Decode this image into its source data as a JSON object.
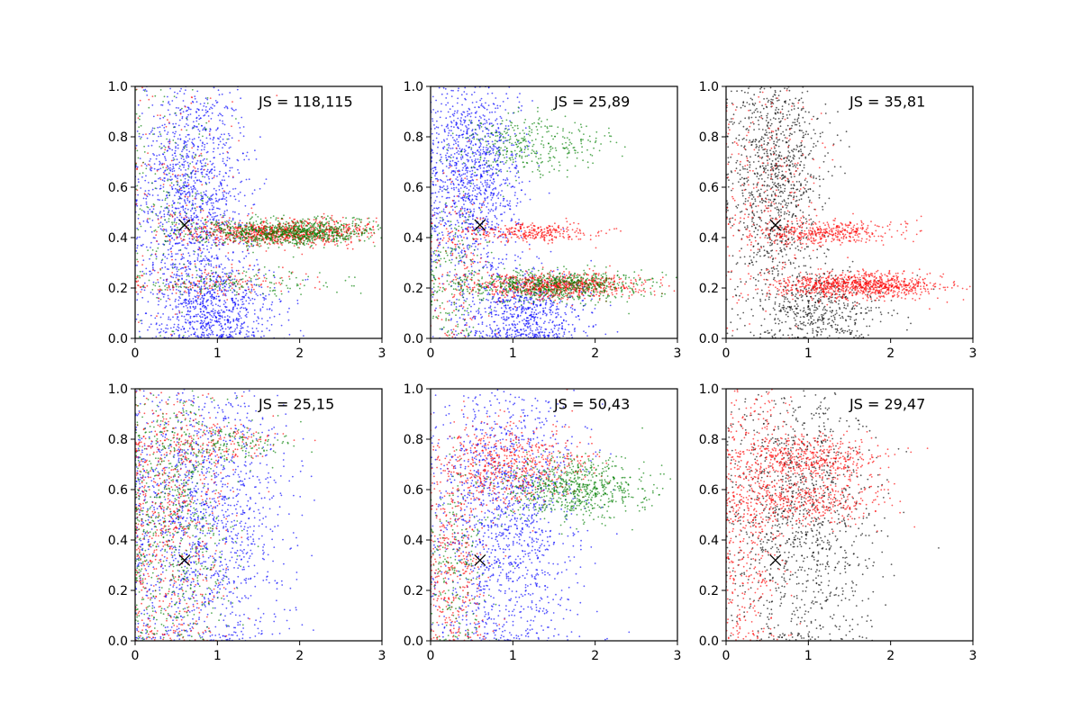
{
  "figure": {
    "background": "#ffffff"
  },
  "chart_data": [
    {
      "type": "scatter",
      "annotation": "JS = 118,115",
      "xlim": [
        0,
        3
      ],
      "ylim": [
        0,
        1
      ],
      "xticks": [
        "0",
        "1",
        "2",
        "3"
      ],
      "yticks": [
        "0.0",
        "0.2",
        "0.4",
        "0.6",
        "0.8",
        "1.0"
      ],
      "marker": {
        "x": 0.6,
        "y": 0.45,
        "symbol": "x",
        "color": "#000000"
      },
      "series": [
        {
          "color": "#0000ff",
          "clusters": [
            {
              "cx": 0.7,
              "cy": 0.55,
              "sx": 0.35,
              "sy": 0.28,
              "count": 1500
            },
            {
              "cx": 1.0,
              "cy": 0.12,
              "sx": 0.35,
              "sy": 0.08,
              "count": 600
            }
          ]
        },
        {
          "color": "#ff0000",
          "clusters": [
            {
              "cx": 1.8,
              "cy": 0.42,
              "sx": 0.55,
              "sy": 0.025,
              "count": 900
            },
            {
              "cx": 0.9,
              "cy": 0.22,
              "sx": 0.6,
              "sy": 0.03,
              "count": 150
            },
            {
              "cx": 0.5,
              "cy": 0.6,
              "sx": 0.4,
              "sy": 0.25,
              "count": 150
            }
          ]
        },
        {
          "color": "#008000",
          "clusters": [
            {
              "cx": 1.9,
              "cy": 0.42,
              "sx": 0.55,
              "sy": 0.025,
              "count": 900
            },
            {
              "cx": 1.3,
              "cy": 0.22,
              "sx": 0.6,
              "sy": 0.03,
              "count": 150
            },
            {
              "cx": 0.4,
              "cy": 0.55,
              "sx": 0.3,
              "sy": 0.25,
              "count": 200
            }
          ]
        }
      ]
    },
    {
      "type": "scatter",
      "annotation": "JS = 25,89",
      "xlim": [
        0,
        3
      ],
      "ylim": [
        0,
        1
      ],
      "xticks": [
        "0",
        "1",
        "2",
        "3"
      ],
      "yticks": [
        "0.0",
        "0.2",
        "0.4",
        "0.6",
        "0.8",
        "1.0"
      ],
      "marker": {
        "x": 0.6,
        "y": 0.45,
        "symbol": "x",
        "color": "#000000"
      },
      "series": [
        {
          "color": "#0000ff",
          "clusters": [
            {
              "cx": 0.5,
              "cy": 0.65,
              "sx": 0.3,
              "sy": 0.22,
              "count": 1300
            },
            {
              "cx": 1.1,
              "cy": 0.1,
              "sx": 0.4,
              "sy": 0.08,
              "count": 700
            }
          ]
        },
        {
          "color": "#ff0000",
          "clusters": [
            {
              "cx": 1.5,
              "cy": 0.21,
              "sx": 0.5,
              "sy": 0.025,
              "count": 800
            },
            {
              "cx": 1.2,
              "cy": 0.42,
              "sx": 0.4,
              "sy": 0.02,
              "count": 300
            },
            {
              "cx": 0.3,
              "cy": 0.3,
              "sx": 0.2,
              "sy": 0.2,
              "count": 150
            }
          ]
        },
        {
          "color": "#008000",
          "clusters": [
            {
              "cx": 1.5,
              "cy": 0.21,
              "sx": 0.55,
              "sy": 0.03,
              "count": 700
            },
            {
              "cx": 1.2,
              "cy": 0.77,
              "sx": 0.45,
              "sy": 0.06,
              "count": 350
            },
            {
              "cx": 0.3,
              "cy": 0.25,
              "sx": 0.2,
              "sy": 0.15,
              "count": 200
            }
          ]
        }
      ]
    },
    {
      "type": "scatter",
      "annotation": "JS = 35,81",
      "xlim": [
        0,
        3
      ],
      "ylim": [
        0,
        1
      ],
      "xticks": [
        "0",
        "1",
        "2",
        "3"
      ],
      "yticks": [
        "0.0",
        "0.2",
        "0.4",
        "0.6",
        "0.8",
        "1.0"
      ],
      "marker": {
        "x": 0.6,
        "y": 0.45,
        "symbol": "x",
        "color": "#000000"
      },
      "series": [
        {
          "color": "#000000",
          "clusters": [
            {
              "cx": 0.6,
              "cy": 0.65,
              "sx": 0.3,
              "sy": 0.25,
              "count": 1100
            },
            {
              "cx": 1.1,
              "cy": 0.12,
              "sx": 0.4,
              "sy": 0.08,
              "count": 500
            }
          ]
        },
        {
          "color": "#ff0000",
          "clusters": [
            {
              "cx": 1.6,
              "cy": 0.21,
              "sx": 0.5,
              "sy": 0.025,
              "count": 900
            },
            {
              "cx": 1.2,
              "cy": 0.42,
              "sx": 0.45,
              "sy": 0.025,
              "count": 400
            },
            {
              "cx": 0.5,
              "cy": 0.6,
              "sx": 0.35,
              "sy": 0.25,
              "count": 250
            }
          ]
        }
      ]
    },
    {
      "type": "scatter",
      "annotation": "JS = 25,15",
      "xlim": [
        0,
        3
      ],
      "ylim": [
        0,
        1
      ],
      "xticks": [
        "0",
        "1",
        "2",
        "3"
      ],
      "yticks": [
        "0.0",
        "0.2",
        "0.4",
        "0.6",
        "0.8",
        "1.0"
      ],
      "marker": {
        "x": 0.6,
        "y": 0.32,
        "symbol": "x",
        "color": "#000000"
      },
      "series": [
        {
          "color": "#0000ff",
          "clusters": [
            {
              "cx": 0.8,
              "cy": 0.5,
              "sx": 0.5,
              "sy": 0.3,
              "count": 1500
            }
          ]
        },
        {
          "color": "#ff0000",
          "clusters": [
            {
              "cx": 0.4,
              "cy": 0.5,
              "sx": 0.35,
              "sy": 0.3,
              "count": 700
            },
            {
              "cx": 1.0,
              "cy": 0.78,
              "sx": 0.4,
              "sy": 0.04,
              "count": 150
            }
          ]
        },
        {
          "color": "#008000",
          "clusters": [
            {
              "cx": 0.45,
              "cy": 0.5,
              "sx": 0.35,
              "sy": 0.3,
              "count": 700
            },
            {
              "cx": 1.1,
              "cy": 0.78,
              "sx": 0.4,
              "sy": 0.04,
              "count": 150
            }
          ]
        }
      ]
    },
    {
      "type": "scatter",
      "annotation": "JS = 50,43",
      "xlim": [
        0,
        3
      ],
      "ylim": [
        0,
        1
      ],
      "xticks": [
        "0",
        "1",
        "2",
        "3"
      ],
      "yticks": [
        "0.0",
        "0.2",
        "0.4",
        "0.6",
        "0.8",
        "1.0"
      ],
      "marker": {
        "x": 0.6,
        "y": 0.32,
        "symbol": "x",
        "color": "#000000"
      },
      "series": [
        {
          "color": "#0000ff",
          "clusters": [
            {
              "cx": 0.9,
              "cy": 0.5,
              "sx": 0.45,
              "sy": 0.3,
              "count": 1500
            }
          ]
        },
        {
          "color": "#ff0000",
          "clusters": [
            {
              "cx": 1.0,
              "cy": 0.7,
              "sx": 0.45,
              "sy": 0.08,
              "count": 600
            },
            {
              "cx": 0.3,
              "cy": 0.3,
              "sx": 0.2,
              "sy": 0.2,
              "count": 350
            }
          ]
        },
        {
          "color": "#008000",
          "clusters": [
            {
              "cx": 1.8,
              "cy": 0.6,
              "sx": 0.45,
              "sy": 0.06,
              "count": 700
            },
            {
              "cx": 0.3,
              "cy": 0.3,
              "sx": 0.2,
              "sy": 0.2,
              "count": 200
            }
          ]
        }
      ]
    },
    {
      "type": "scatter",
      "annotation": "JS = 29,47",
      "xlim": [
        0,
        3
      ],
      "ylim": [
        0,
        1
      ],
      "xticks": [
        "0",
        "1",
        "2",
        "3"
      ],
      "yticks": [
        "0.0",
        "0.2",
        "0.4",
        "0.6",
        "0.8",
        "1.0"
      ],
      "marker": {
        "x": 0.6,
        "y": 0.32,
        "symbol": "x",
        "color": "#000000"
      },
      "series": [
        {
          "color": "#000000",
          "clusters": [
            {
              "cx": 0.9,
              "cy": 0.5,
              "sx": 0.45,
              "sy": 0.3,
              "count": 1200
            }
          ]
        },
        {
          "color": "#ff0000",
          "clusters": [
            {
              "cx": 1.0,
              "cy": 0.72,
              "sx": 0.45,
              "sy": 0.05,
              "count": 500
            },
            {
              "cx": 1.0,
              "cy": 0.55,
              "sx": 0.45,
              "sy": 0.04,
              "count": 350
            },
            {
              "cx": 0.3,
              "cy": 0.5,
              "sx": 0.25,
              "sy": 0.3,
              "count": 500
            }
          ]
        }
      ]
    }
  ]
}
